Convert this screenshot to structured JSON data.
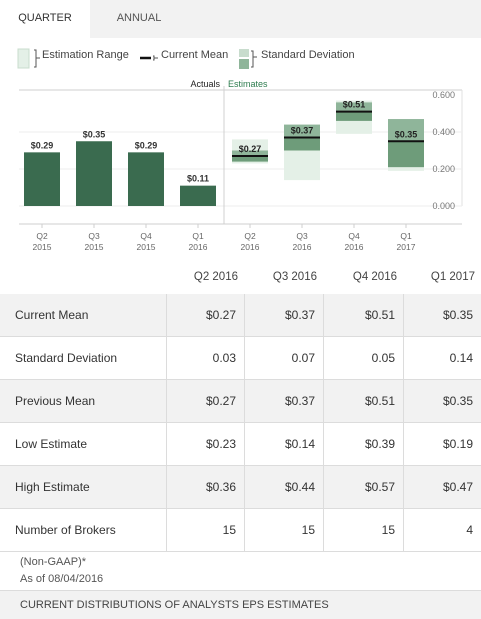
{
  "tabs": [
    {
      "label": "QUARTER",
      "active": true
    },
    {
      "label": "ANNUAL",
      "active": false
    }
  ],
  "legend": {
    "estimation_range": "Estimation Range",
    "current_mean": "Current Mean",
    "standard_deviation": "Standard Deviation"
  },
  "colors": {
    "actual_bar": "#3a6b4f",
    "range_light": "#e4f0e7",
    "sd_mid": "#8fb59a",
    "sd_dark": "#6e9c7a",
    "mean_line": "#111111"
  },
  "chart_data": {
    "type": "bar",
    "section_labels": [
      "Actuals",
      "Estimates"
    ],
    "categories": [
      [
        "Q2",
        "2015"
      ],
      [
        "Q3",
        "2015"
      ],
      [
        "Q4",
        "2015"
      ],
      [
        "Q1",
        "2016"
      ],
      [
        "Q2",
        "2016"
      ],
      [
        "Q3",
        "2016"
      ],
      [
        "Q4",
        "2016"
      ],
      [
        "Q1",
        "2017"
      ]
    ],
    "actuals": [
      {
        "value": 0.29,
        "label": "$0.29"
      },
      {
        "value": 0.35,
        "label": "$0.35"
      },
      {
        "value": 0.29,
        "label": "$0.29"
      },
      {
        "value": 0.11,
        "label": "$0.11"
      }
    ],
    "estimates": [
      {
        "low": 0.23,
        "high": 0.36,
        "mean": 0.27,
        "sd": 0.03,
        "label": "$0.27"
      },
      {
        "low": 0.14,
        "high": 0.44,
        "mean": 0.37,
        "sd": 0.07,
        "label": "$0.37"
      },
      {
        "low": 0.39,
        "high": 0.57,
        "mean": 0.51,
        "sd": 0.05,
        "label": "$0.51"
      },
      {
        "low": 0.19,
        "high": 0.47,
        "mean": 0.35,
        "sd": 0.14,
        "label": "$0.35"
      }
    ],
    "y_ticks": [
      "0.600",
      "0.400",
      "0.200",
      "0.000"
    ],
    "ylim": [
      0,
      0.6
    ],
    "grid": true,
    "axis_side": "right"
  },
  "table": {
    "columns": [
      "Q2 2016",
      "Q3 2016",
      "Q4 2016",
      "Q1 2017"
    ],
    "rows": [
      {
        "label": "Current Mean",
        "values": [
          "$0.27",
          "$0.37",
          "$0.51",
          "$0.35"
        ]
      },
      {
        "label": "Standard Deviation",
        "values": [
          "0.03",
          "0.07",
          "0.05",
          "0.14"
        ]
      },
      {
        "label": "Previous Mean",
        "values": [
          "$0.27",
          "$0.37",
          "$0.51",
          "$0.35"
        ]
      },
      {
        "label": "Low Estimate",
        "values": [
          "$0.23",
          "$0.14",
          "$0.39",
          "$0.19"
        ]
      },
      {
        "label": "High Estimate",
        "values": [
          "$0.36",
          "$0.44",
          "$0.57",
          "$0.47"
        ]
      },
      {
        "label": "Number of Brokers",
        "values": [
          "15",
          "15",
          "15",
          "4"
        ]
      }
    ]
  },
  "footnotes": [
    "(Non-GAAP)*",
    "As of 08/04/2016"
  ],
  "bottom_bar": {
    "label": "CURRENT DISTRIBUTIONS OF ANALYSTS EPS ESTIMATES"
  }
}
